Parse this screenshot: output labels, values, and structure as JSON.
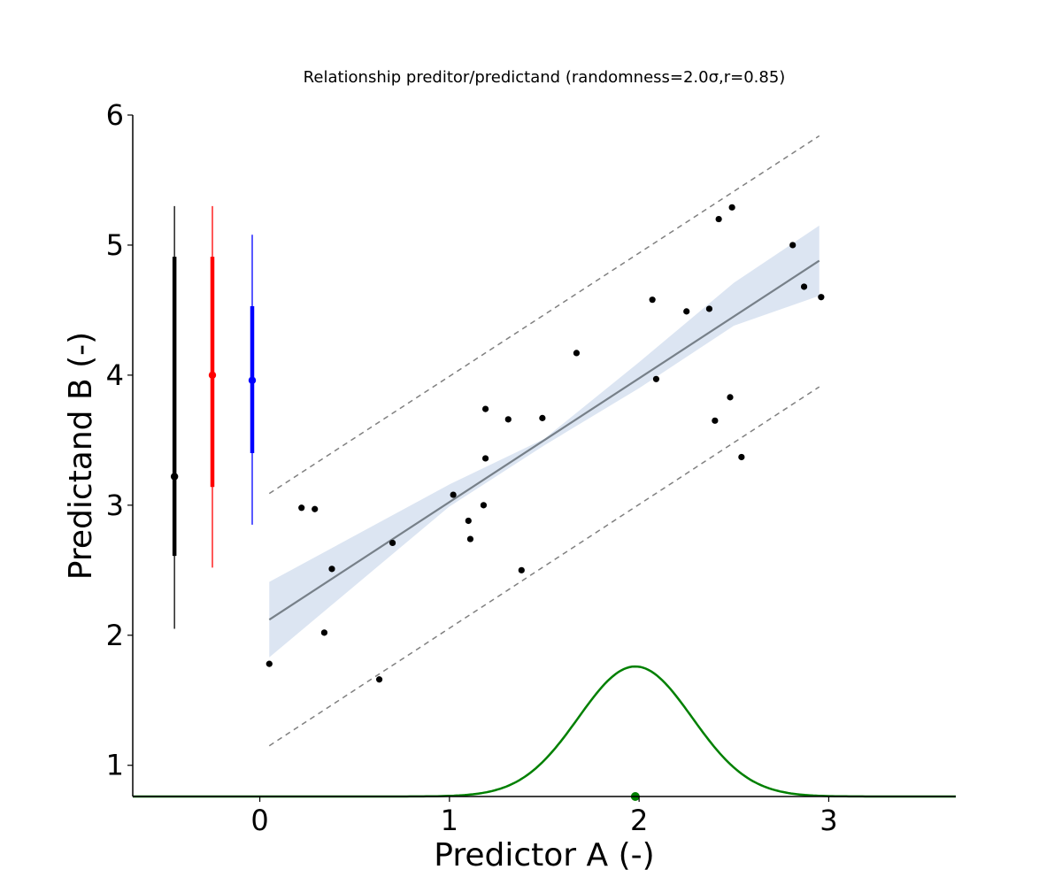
{
  "chart_data": {
    "type": "scatter",
    "title": "Relationship preditor/predictand (randomness=2.0σ,r=0.85)",
    "xlabel": "Predictor A (-)",
    "ylabel": "Predictand B (-)",
    "xlim": [
      -0.67,
      3.67
    ],
    "ylim": [
      0.76,
      6.0
    ],
    "x_ticks": [
      0,
      1,
      2,
      3
    ],
    "y_ticks": [
      1,
      2,
      3,
      4,
      5,
      6
    ],
    "grid": false,
    "legend": "none",
    "points": [
      {
        "x": 0.05,
        "y": 1.78
      },
      {
        "x": 0.22,
        "y": 2.98
      },
      {
        "x": 0.29,
        "y": 2.97
      },
      {
        "x": 0.34,
        "y": 2.02
      },
      {
        "x": 0.38,
        "y": 2.51
      },
      {
        "x": 0.63,
        "y": 1.66
      },
      {
        "x": 0.7,
        "y": 2.71
      },
      {
        "x": 1.02,
        "y": 3.08
      },
      {
        "x": 1.1,
        "y": 2.88
      },
      {
        "x": 1.11,
        "y": 2.74
      },
      {
        "x": 1.18,
        "y": 3.0
      },
      {
        "x": 1.19,
        "y": 3.36
      },
      {
        "x": 1.19,
        "y": 3.74
      },
      {
        "x": 1.31,
        "y": 3.66
      },
      {
        "x": 1.38,
        "y": 2.5
      },
      {
        "x": 1.49,
        "y": 3.67
      },
      {
        "x": 1.67,
        "y": 4.17
      },
      {
        "x": 2.07,
        "y": 4.58
      },
      {
        "x": 2.09,
        "y": 3.97
      },
      {
        "x": 2.25,
        "y": 4.49
      },
      {
        "x": 2.37,
        "y": 4.51
      },
      {
        "x": 2.4,
        "y": 3.65
      },
      {
        "x": 2.42,
        "y": 5.2
      },
      {
        "x": 2.48,
        "y": 3.83
      },
      {
        "x": 2.49,
        "y": 5.29
      },
      {
        "x": 2.54,
        "y": 3.37
      },
      {
        "x": 2.81,
        "y": 5.0
      },
      {
        "x": 2.87,
        "y": 4.68
      },
      {
        "x": 2.96,
        "y": 4.6
      }
    ],
    "regression_line": {
      "x": [
        0.05,
        2.95
      ],
      "y": [
        2.12,
        4.88
      ],
      "color": "#778089"
    },
    "confidence_band": {
      "color": "#dce5f2",
      "upper": [
        {
          "x": 0.05,
          "y": 2.41
        },
        {
          "x": 1.0,
          "y": 3.16
        },
        {
          "x": 1.5,
          "y": 3.51
        },
        {
          "x": 2.0,
          "y": 4.1
        },
        {
          "x": 2.5,
          "y": 4.71
        },
        {
          "x": 2.95,
          "y": 5.15
        }
      ],
      "lower": [
        {
          "x": 0.05,
          "y": 1.83
        },
        {
          "x": 0.5,
          "y": 2.38
        },
        {
          "x": 1.0,
          "y": 2.99
        },
        {
          "x": 1.5,
          "y": 3.46
        },
        {
          "x": 2.0,
          "y": 3.9
        },
        {
          "x": 2.5,
          "y": 4.38
        },
        {
          "x": 2.95,
          "y": 4.61
        }
      ]
    },
    "prediction_bounds": {
      "color": "#808080",
      "upper": {
        "x": [
          0.05,
          2.95
        ],
        "y": [
          3.09,
          5.84
        ]
      },
      "lower": {
        "x": [
          0.05,
          2.95
        ],
        "y": [
          1.15,
          3.91
        ]
      }
    },
    "error_bars": [
      {
        "x": -0.45,
        "center": 3.22,
        "inner": [
          2.61,
          4.91
        ],
        "outer": [
          2.05,
          5.3
        ],
        "color": "#000000"
      },
      {
        "x": -0.25,
        "center": 4.0,
        "inner": [
          3.14,
          4.91
        ],
        "outer": [
          2.52,
          5.3
        ],
        "color": "#ff0000"
      },
      {
        "x": -0.04,
        "center": 3.96,
        "inner": [
          3.4,
          4.53
        ],
        "outer": [
          2.85,
          5.08
        ],
        "color": "#0000ff"
      }
    ],
    "density_curve": {
      "mean": 1.98,
      "sd": 0.3,
      "base": 0.76,
      "peak": 1.76,
      "color": "#008000",
      "marker_x": 1.98
    }
  }
}
